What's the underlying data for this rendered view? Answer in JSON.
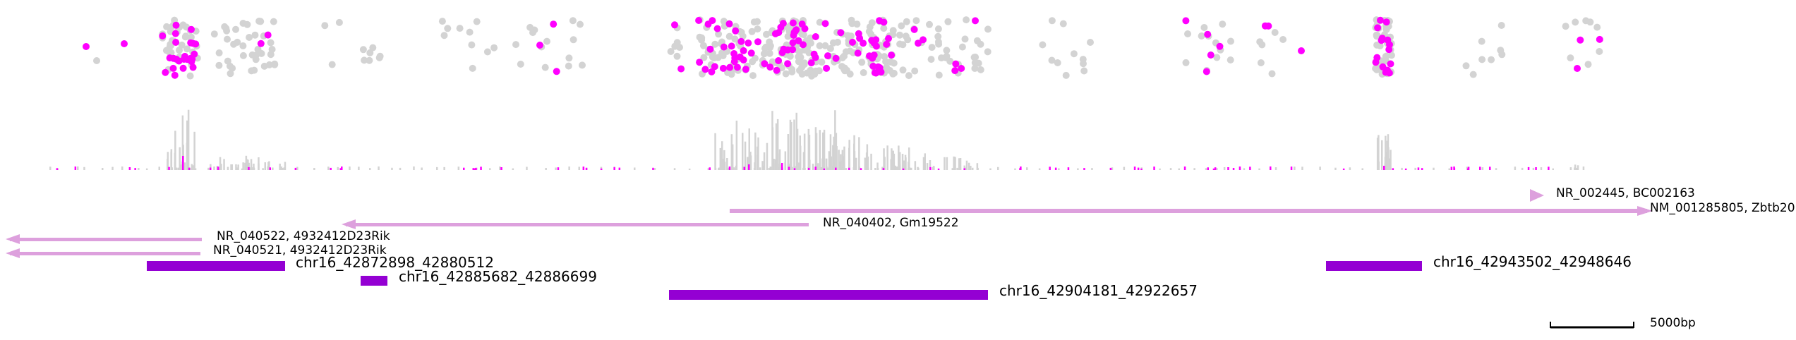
{
  "genome_browser": {
    "scale_label": "5000bp",
    "colors": {
      "highlight": "#ff00ff",
      "background_points": "#d3d3d3",
      "gene": "#dda0dd",
      "region": "#9400d3",
      "text": "#000000"
    },
    "genes": [
      {
        "label": "NR_002445, BC002163",
        "strand": "+"
      },
      {
        "label": "NM_001285805, Zbtb20",
        "strand": "+"
      },
      {
        "label": "NR_040402, Gm19522",
        "strand": "-"
      },
      {
        "label": "NR_040522, 4932412D23Rik",
        "strand": "-"
      },
      {
        "label": "NR_040521, 4932412D23Rik",
        "strand": "-"
      }
    ],
    "regions": [
      {
        "label": "chr16_42872898_42880512"
      },
      {
        "label": "chr16_42885682_42886699"
      },
      {
        "label": "chr16_42904181_42922657"
      },
      {
        "label": "chr16_42943502_42948646"
      }
    ]
  }
}
